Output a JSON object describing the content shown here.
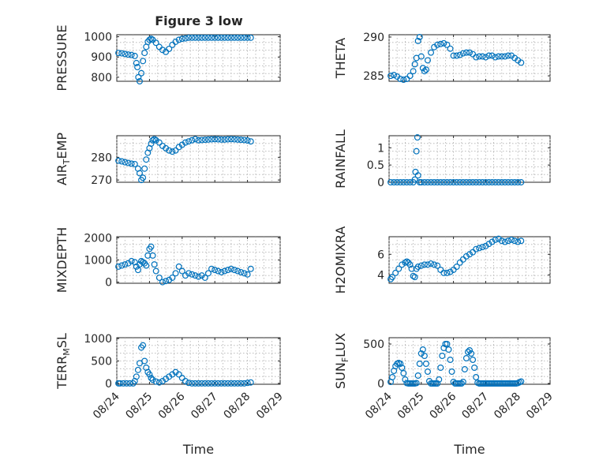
{
  "figure": {
    "title": "Figure 3 low",
    "marker_color": "#0072BD"
  },
  "chart_data": [
    {
      "type": "scatter",
      "name": "pressure-panel",
      "ylabel": "PRESSURE",
      "ylim": [
        780,
        1010
      ],
      "yticks": [
        800,
        900,
        1000
      ],
      "ytick_labels": [
        "800",
        "900",
        "1000"
      ],
      "xlim": [
        0,
        5
      ],
      "xticks": [
        0,
        1,
        2,
        3,
        4,
        5
      ],
      "xtick_labels": [],
      "x": [
        0.05,
        0.15,
        0.25,
        0.35,
        0.45,
        0.55,
        0.6,
        0.63,
        0.66,
        0.7,
        0.75,
        0.8,
        0.85,
        0.9,
        0.95,
        1.0,
        1.05,
        1.1,
        1.2,
        1.3,
        1.4,
        1.5,
        1.6,
        1.7,
        1.8,
        1.9,
        2.0,
        2.1,
        2.2,
        2.3,
        2.4,
        2.5,
        2.6,
        2.7,
        2.8,
        2.9,
        3.0,
        3.1,
        3.2,
        3.3,
        3.4,
        3.5,
        3.6,
        3.7,
        3.8,
        3.9,
        4.0,
        4.1
      ],
      "y": [
        920,
        918,
        915,
        912,
        910,
        905,
        870,
        850,
        800,
        780,
        820,
        880,
        920,
        950,
        975,
        985,
        990,
        985,
        970,
        950,
        935,
        925,
        940,
        960,
        975,
        985,
        990,
        992,
        995,
        995,
        995,
        995,
        995,
        995,
        995,
        995,
        995,
        995,
        995,
        995,
        995,
        995,
        995,
        995,
        995,
        995,
        995,
        995
      ]
    },
    {
      "type": "scatter",
      "name": "theta-panel",
      "ylabel": "THETA",
      "ylim": [
        284.3,
        290.3
      ],
      "yticks": [
        285,
        290
      ],
      "ytick_labels": [
        "285",
        "290"
      ],
      "xlim": [
        0,
        5
      ],
      "xticks": [
        0,
        1,
        2,
        3,
        4,
        5
      ],
      "xtick_labels": [],
      "x": [
        0.05,
        0.15,
        0.25,
        0.35,
        0.45,
        0.55,
        0.65,
        0.75,
        0.8,
        0.85,
        0.9,
        0.95,
        1.0,
        1.05,
        1.1,
        1.15,
        1.2,
        1.3,
        1.4,
        1.5,
        1.6,
        1.7,
        1.8,
        1.9,
        2.0,
        2.1,
        2.2,
        2.3,
        2.4,
        2.5,
        2.6,
        2.7,
        2.8,
        2.9,
        3.0,
        3.1,
        3.2,
        3.3,
        3.4,
        3.5,
        3.6,
        3.7,
        3.8,
        3.9,
        4.0,
        4.1
      ],
      "y": [
        285.0,
        285.1,
        284.9,
        284.6,
        284.5,
        284.6,
        285.0,
        285.6,
        286.5,
        287.3,
        289.5,
        290.0,
        287.5,
        286.0,
        285.6,
        285.8,
        287.0,
        288.0,
        288.7,
        289.0,
        289.1,
        289.2,
        289.0,
        288.5,
        287.6,
        287.6,
        287.7,
        287.9,
        288.0,
        288.0,
        287.8,
        287.4,
        287.5,
        287.5,
        287.4,
        287.6,
        287.6,
        287.4,
        287.5,
        287.5,
        287.5,
        287.6,
        287.6,
        287.3,
        287.0,
        286.7
      ]
    },
    {
      "type": "scatter",
      "name": "air-temp-panel",
      "ylabel": "AIR_TEMP",
      "ylim": [
        269,
        289.5
      ],
      "yticks": [
        270,
        280
      ],
      "ytick_labels": [
        "270",
        "280"
      ],
      "xlim": [
        0,
        5
      ],
      "xticks": [
        0,
        1,
        2,
        3,
        4,
        5
      ],
      "xtick_labels": [],
      "x": [
        0.05,
        0.15,
        0.25,
        0.35,
        0.45,
        0.55,
        0.65,
        0.7,
        0.75,
        0.8,
        0.85,
        0.9,
        0.95,
        1.0,
        1.05,
        1.1,
        1.15,
        1.2,
        1.3,
        1.4,
        1.5,
        1.6,
        1.7,
        1.8,
        1.9,
        2.0,
        2.1,
        2.2,
        2.3,
        2.4,
        2.5,
        2.6,
        2.7,
        2.8,
        2.9,
        3.0,
        3.1,
        3.2,
        3.3,
        3.4,
        3.5,
        3.6,
        3.7,
        3.8,
        3.9,
        4.0,
        4.1
      ],
      "y": [
        278.5,
        278.2,
        277.8,
        277.5,
        277.2,
        277.0,
        275.0,
        273.0,
        270.0,
        271.0,
        275.0,
        279.0,
        282.0,
        284.0,
        286.0,
        287.5,
        288.0,
        287.5,
        286.5,
        285.0,
        284.0,
        283.0,
        282.5,
        283.0,
        284.5,
        285.5,
        286.5,
        287.0,
        287.5,
        288.0,
        287.5,
        287.6,
        287.7,
        287.8,
        287.9,
        288.0,
        287.9,
        287.8,
        287.8,
        287.9,
        288.0,
        287.9,
        287.8,
        287.7,
        287.6,
        287.4,
        287.0
      ]
    },
    {
      "type": "scatter",
      "name": "rainfall-panel",
      "ylabel": "RAINFALL",
      "ylim": [
        0,
        1.35
      ],
      "yticks": [
        0,
        0.5,
        1
      ],
      "ytick_labels": [
        "0",
        "0.5",
        "1"
      ],
      "xlim": [
        0,
        5
      ],
      "xticks": [
        0,
        1,
        2,
        3,
        4,
        5
      ],
      "xtick_labels": [],
      "x": [
        0.05,
        0.15,
        0.25,
        0.35,
        0.45,
        0.55,
        0.65,
        0.75,
        0.8,
        0.82,
        0.85,
        0.88,
        0.9,
        0.95,
        1.0,
        1.1,
        1.2,
        1.3,
        1.4,
        1.5,
        1.6,
        1.7,
        1.8,
        1.9,
        2.0,
        2.1,
        2.2,
        2.3,
        2.4,
        2.5,
        2.6,
        2.7,
        2.8,
        2.9,
        3.0,
        3.1,
        3.2,
        3.3,
        3.4,
        3.5,
        3.6,
        3.7,
        3.8,
        3.9,
        4.0,
        4.1
      ],
      "y": [
        0,
        0,
        0,
        0,
        0,
        0,
        0,
        0,
        0.08,
        0.3,
        0.9,
        1.3,
        0.2,
        0,
        0,
        0,
        0,
        0,
        0,
        0,
        0,
        0,
        0,
        0,
        0,
        0,
        0,
        0,
        0,
        0,
        0,
        0,
        0,
        0,
        0,
        0,
        0,
        0,
        0,
        0,
        0,
        0,
        0,
        0,
        0,
        0
      ]
    },
    {
      "type": "scatter",
      "name": "mixdepth-panel",
      "ylabel": "MIXDEPTH",
      "ylim": [
        -50,
        2050
      ],
      "yticks": [
        0,
        1000,
        2000
      ],
      "ytick_labels": [
        "0",
        "1000",
        "2000"
      ],
      "xlim": [
        0,
        5
      ],
      "xticks": [
        0,
        1,
        2,
        3,
        4,
        5
      ],
      "xtick_labels": [],
      "x": [
        0.05,
        0.15,
        0.25,
        0.35,
        0.45,
        0.55,
        0.6,
        0.65,
        0.7,
        0.75,
        0.8,
        0.85,
        0.9,
        0.95,
        1.0,
        1.05,
        1.1,
        1.15,
        1.2,
        1.3,
        1.4,
        1.5,
        1.6,
        1.7,
        1.8,
        1.9,
        2.0,
        2.1,
        2.2,
        2.3,
        2.4,
        2.5,
        2.6,
        2.7,
        2.8,
        2.9,
        3.0,
        3.1,
        3.2,
        3.3,
        3.4,
        3.5,
        3.6,
        3.7,
        3.8,
        3.9,
        4.0,
        4.1
      ],
      "y": [
        700,
        750,
        800,
        850,
        950,
        900,
        700,
        550,
        800,
        950,
        900,
        850,
        750,
        1200,
        1500,
        1600,
        1200,
        800,
        500,
        200,
        0,
        50,
        100,
        200,
        400,
        700,
        500,
        300,
        400,
        350,
        300,
        250,
        300,
        200,
        400,
        600,
        550,
        500,
        450,
        500,
        550,
        600,
        550,
        500,
        450,
        400,
        350,
        600
      ]
    },
    {
      "type": "scatter",
      "name": "h2omixra-panel",
      "ylabel": "H2OMIXRA",
      "ylim": [
        3.2,
        7.7
      ],
      "yticks": [
        4,
        6
      ],
      "ytick_labels": [
        "4",
        "6"
      ],
      "xlim": [
        0,
        5
      ],
      "xticks": [
        0,
        1,
        2,
        3,
        4,
        5
      ],
      "xtick_labels": [],
      "x": [
        0.05,
        0.1,
        0.2,
        0.3,
        0.4,
        0.5,
        0.55,
        0.6,
        0.65,
        0.7,
        0.75,
        0.8,
        0.85,
        0.9,
        1.0,
        1.1,
        1.2,
        1.3,
        1.4,
        1.5,
        1.6,
        1.7,
        1.8,
        1.9,
        2.0,
        2.1,
        2.2,
        2.3,
        2.4,
        2.5,
        2.6,
        2.7,
        2.8,
        2.9,
        3.0,
        3.1,
        3.2,
        3.3,
        3.4,
        3.5,
        3.6,
        3.7,
        3.8,
        3.9,
        4.0,
        4.1
      ],
      "y": [
        3.6,
        3.8,
        4.2,
        4.6,
        5.0,
        5.2,
        5.3,
        5.2,
        5.0,
        4.6,
        3.9,
        3.8,
        4.6,
        4.8,
        4.9,
        5.0,
        5.0,
        5.1,
        5.0,
        4.9,
        4.5,
        4.2,
        4.2,
        4.3,
        4.5,
        4.8,
        5.2,
        5.5,
        5.8,
        6.0,
        6.2,
        6.5,
        6.6,
        6.7,
        6.8,
        7.0,
        7.2,
        7.4,
        7.5,
        7.3,
        7.2,
        7.3,
        7.4,
        7.3,
        7.2,
        7.3
      ]
    },
    {
      "type": "scatter",
      "name": "terr-msl-panel",
      "ylabel": "TERR_MSL",
      "ylim": [
        -20,
        1020
      ],
      "yticks": [
        0,
        500,
        1000
      ],
      "ytick_labels": [
        "0",
        "500",
        "1000"
      ],
      "xlim": [
        0,
        5
      ],
      "xticks": [
        0,
        1,
        2,
        3,
        4,
        5
      ],
      "xtick_labels": [
        "08/24",
        "08/25",
        "08/26",
        "08/27",
        "08/28",
        "08/29"
      ],
      "xlabel": "Time",
      "x": [
        0.05,
        0.1,
        0.2,
        0.3,
        0.4,
        0.5,
        0.55,
        0.6,
        0.65,
        0.7,
        0.75,
        0.8,
        0.85,
        0.9,
        0.95,
        1.0,
        1.05,
        1.1,
        1.2,
        1.3,
        1.4,
        1.5,
        1.6,
        1.7,
        1.8,
        1.9,
        2.0,
        2.1,
        2.2,
        2.3,
        2.4,
        2.5,
        2.6,
        2.7,
        2.8,
        2.9,
        3.0,
        3.1,
        3.2,
        3.3,
        3.4,
        3.5,
        3.6,
        3.7,
        3.8,
        3.9,
        4.0,
        4.1
      ],
      "y": [
        0,
        0,
        0,
        0,
        0,
        0,
        50,
        150,
        300,
        450,
        800,
        850,
        500,
        350,
        250,
        200,
        120,
        80,
        40,
        20,
        50,
        100,
        150,
        200,
        250,
        200,
        120,
        50,
        10,
        0,
        0,
        0,
        0,
        0,
        0,
        0,
        0,
        0,
        0,
        0,
        0,
        0,
        0,
        0,
        0,
        0,
        10,
        20
      ]
    },
    {
      "type": "scatter",
      "name": "sun-flux-panel",
      "ylabel": "SUN_FLUX",
      "ylim": [
        -10,
        580
      ],
      "yticks": [
        0,
        500
      ],
      "ytick_labels": [
        "0",
        "500"
      ],
      "xlim": [
        0,
        5
      ],
      "xticks": [
        0,
        1,
        2,
        3,
        4,
        5
      ],
      "xtick_labels": [
        "08/24",
        "08/25",
        "08/26",
        "08/27",
        "08/28",
        "08/29"
      ],
      "xlabel": "Time",
      "x": [
        0.05,
        0.1,
        0.15,
        0.2,
        0.25,
        0.3,
        0.35,
        0.4,
        0.45,
        0.5,
        0.55,
        0.6,
        0.65,
        0.7,
        0.75,
        0.8,
        0.85,
        0.9,
        0.95,
        1.0,
        1.05,
        1.1,
        1.15,
        1.2,
        1.25,
        1.3,
        1.35,
        1.4,
        1.45,
        1.5,
        1.55,
        1.6,
        1.65,
        1.7,
        1.75,
        1.8,
        1.85,
        1.9,
        1.95,
        2.0,
        2.05,
        2.1,
        2.15,
        2.2,
        2.25,
        2.3,
        2.35,
        2.4,
        2.45,
        2.5,
        2.55,
        2.6,
        2.65,
        2.7,
        2.75,
        2.8,
        2.85,
        2.9,
        2.95,
        3.0,
        3.05,
        3.1,
        3.15,
        3.2,
        3.25,
        3.3,
        3.35,
        3.4,
        3.45,
        3.5,
        3.55,
        3.6,
        3.65,
        3.7,
        3.75,
        3.8,
        3.85,
        3.9,
        3.95,
        4.0,
        4.05,
        4.1
      ],
      "y": [
        20,
        80,
        160,
        220,
        250,
        260,
        250,
        200,
        130,
        50,
        5,
        0,
        0,
        0,
        0,
        0,
        5,
        100,
        250,
        380,
        430,
        350,
        250,
        150,
        30,
        0,
        0,
        0,
        0,
        0,
        50,
        200,
        350,
        450,
        500,
        500,
        430,
        300,
        150,
        20,
        0,
        0,
        0,
        0,
        0,
        20,
        180,
        320,
        400,
        420,
        380,
        300,
        200,
        80,
        10,
        0,
        0,
        0,
        0,
        0,
        0,
        0,
        0,
        0,
        0,
        0,
        0,
        0,
        0,
        0,
        0,
        0,
        0,
        0,
        0,
        0,
        0,
        0,
        0,
        5,
        15,
        25
      ]
    }
  ]
}
